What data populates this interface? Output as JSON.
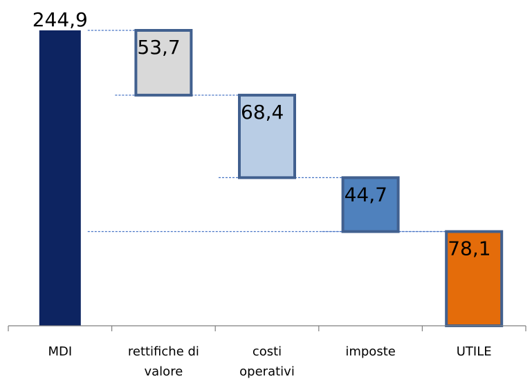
{
  "chart_data": {
    "type": "bar",
    "subtype": "waterfall",
    "title": "",
    "xlabel": "",
    "ylabel": "",
    "ylim": [
      0,
      244.9
    ],
    "grid": false,
    "legend": "none",
    "categories": [
      "MDI",
      "rettifiche di valore",
      "costi operativi",
      "imposte",
      "UTILE"
    ],
    "category_lines": [
      [
        "MDI"
      ],
      [
        "rettifiche di",
        "valore"
      ],
      [
        "costi",
        "operativi"
      ],
      [
        "imposte"
      ],
      [
        "UTILE"
      ]
    ],
    "values": [
      244.9,
      53.7,
      68.4,
      44.7,
      78.1
    ],
    "value_labels": [
      "244,9",
      "53,7",
      "68,4",
      "44,7",
      "78,1"
    ],
    "bar_kinds": [
      "total",
      "decrease",
      "decrease",
      "decrease",
      "total"
    ],
    "colors": {
      "MDI": "#0d2461",
      "rettifiche di valore": "#d9d9d9",
      "costi operativi": "#b9cde5",
      "imposte": "#4f81bd",
      "UTILE": "#e46c0a",
      "bar_border": "#41608f",
      "connector": "#4472c4",
      "axis": "#7f7f7f"
    }
  }
}
